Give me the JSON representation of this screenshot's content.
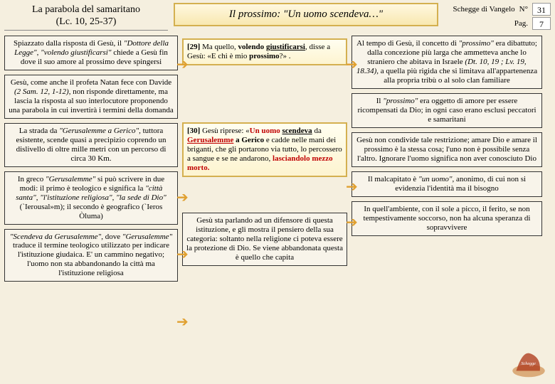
{
  "header": {
    "left_line1": "La parabola del samaritano",
    "left_line2": "(Lc. 10, 25-37)",
    "center": "Il prossimo: \"Un uomo scendeva…\"",
    "series": "Schegge di Vangelo",
    "n_label": "N°",
    "n_value": "31",
    "pag_label": "Pag.",
    "pag_value": "7"
  },
  "col1": {
    "b1": "Spiazzato dalla risposta di Gesù, il <span class='i'>\"Dottore della Legge\"</span>, <span class='i'>\"volendo giustificarsi\"</span> chiede a Gesù fin dove il suo amore al prossimo deve spingersi",
    "b2": "Gesù, come anche il profeta Natan fece con Davide <span class='i'>(2 Sam. 12, 1-12)</span>, non risponde direttamente, ma lascia la risposta al suo interlocutore proponendo una parabola in cui invertirà i termini della domanda",
    "b3": "La strada da <span class='i'>\"Gerusalemme a Gerico\"</span>, tuttora esistente, scende quasi a precipizio coprendo un dislivello di oltre mille metri con un percorso di circa 30 Km.",
    "b4": "In greco <span class='i'>\"Gerusalemme\"</span> si può scrivere in due modi: il primo è teologico e significa la <span class='i'>\"città santa\"</span>, <span class='i'>\"l'istituzione religiosa\"</span>, <span class='i'>\"la sede di Dio\"</span> (`Ierousal»m); il secondo è geografico (`Ieros Òluma)",
    "b5": "<span class='i'>\"Scendeva da Gerusalemme\"</span>, dove <span class='i'>\"Gerusalemme\"</span> traduce il termine teologico utilizzato per indicare l'istituzione giudaica. E' un cammino negativo; l'uomo non sta abbandonando la città ma l'istituzione religiosa"
  },
  "col2": {
    "b1": "<b>[29]</b> Ma quello, <b>volendo <span class='u'>giustificarsi</span></b>, disse a Gesù: «E chi è mio <b>prossimo</b>?» .",
    "b2": "<b>[30]</b> Gesù riprese: «<span class='red'>Un uomo</span> <b><span class='u'>scendeva</span></b> da <span class='red u'>Gerusalemme</span> <b>a Gerico</b> e cadde nelle mani dei briganti, che gli portarono via tutto, lo percossero a sangue e se ne andarono, <span class='red'>lasciandolo mezzo morto.</span>",
    "b3": "Gesù sta parlando ad un difensore di questa istituzione, e gli mostra il pensiero della sua categoria: soltanto nella religione ci poteva essere la protezione di Dio. Se viene abbandonata questa è quello che capita"
  },
  "col3": {
    "b1": "Al tempo di Gesù, il concetto di <span class='i'>\"prossimo\"</span> era dibattuto; dalla concezione più larga che ammetteva anche lo straniero che abitava in Israele <span class='i'>(Dt. 10, 19 ; Lv. 19, 18.34)</span>, a quella più rigida che si limitava all'appartenenza alla propria tribù o al solo clan familiare",
    "b2": "Il <span class='i'>\"prossimo\"</span> era oggetto di amore per essere ricompensati da Dio; in ogni caso erano esclusi peccatori e samaritani",
    "b3": "Gesù non condivide tale restrizione; amare Dio e amare il prossimo è la stessa cosa; l'uno non è possibile senza l'altro. Ignorare l'uomo significa non aver conosciuto Dio",
    "b4": "Il malcapitato è <span class='i'>\"un uomo\"</span>, anonimo, di cui non si evidenzia l'identità ma il bisogno",
    "b5": "In quell'ambiente, con il sole a picco, il ferito, se non tempestivamente soccorso, non ha alcuna speranza di sopravvivere"
  },
  "colors": {
    "bg": "#f5efdf",
    "gold_border": "#d4b050",
    "gold_fill_top": "#fffef0",
    "gold_fill_bot": "#fdf4d0",
    "red": "#c00000",
    "arrow": "#e0a030"
  }
}
